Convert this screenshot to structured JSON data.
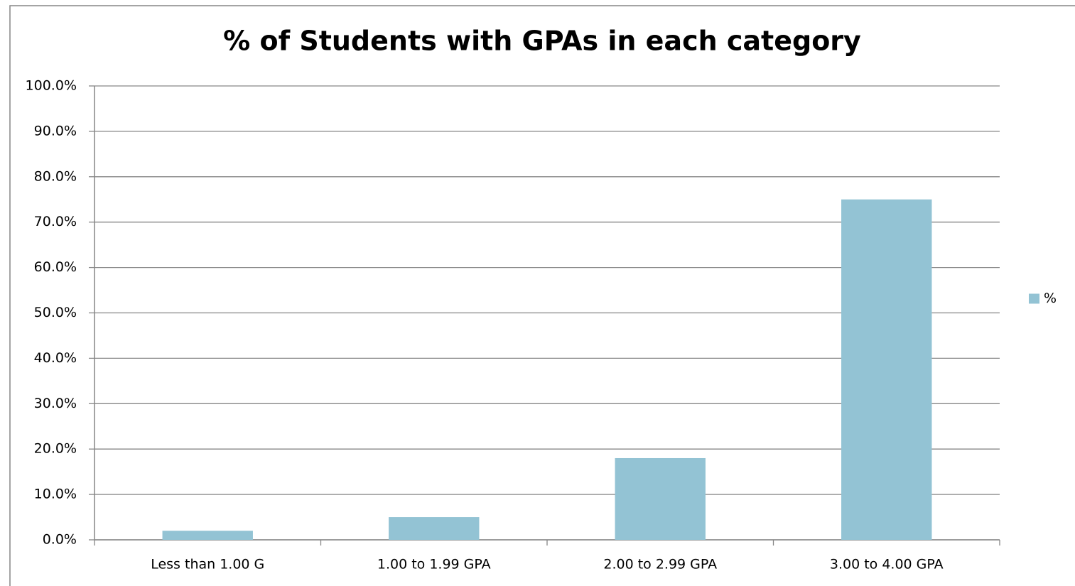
{
  "chart_data": {
    "type": "bar",
    "title": "% of Students with GPAs in each category",
    "categories": [
      "Less than 1.00 G",
      "1.00 to 1.99 GPA",
      "2.00 to 2.99 GPA",
      "3.00 to 4.00 GPA"
    ],
    "series": [
      {
        "name": "%",
        "color": "#93c3d4",
        "values": [
          2.0,
          5.0,
          18.0,
          75.0
        ]
      }
    ],
    "ylim": [
      0,
      100
    ],
    "yticks": [
      {
        "value": 0,
        "label": "0.0%"
      },
      {
        "value": 10,
        "label": "10.0%"
      },
      {
        "value": 20,
        "label": "20.0%"
      },
      {
        "value": 30,
        "label": "30.0%"
      },
      {
        "value": 40,
        "label": "40.0%"
      },
      {
        "value": 50,
        "label": "50.0%"
      },
      {
        "value": 60,
        "label": "60.0%"
      },
      {
        "value": 70,
        "label": "70.0%"
      },
      {
        "value": 80,
        "label": "80.0%"
      },
      {
        "value": 90,
        "label": "90.0%"
      },
      {
        "value": 100,
        "label": "100.0%"
      }
    ],
    "grid": true,
    "legend": "right"
  }
}
